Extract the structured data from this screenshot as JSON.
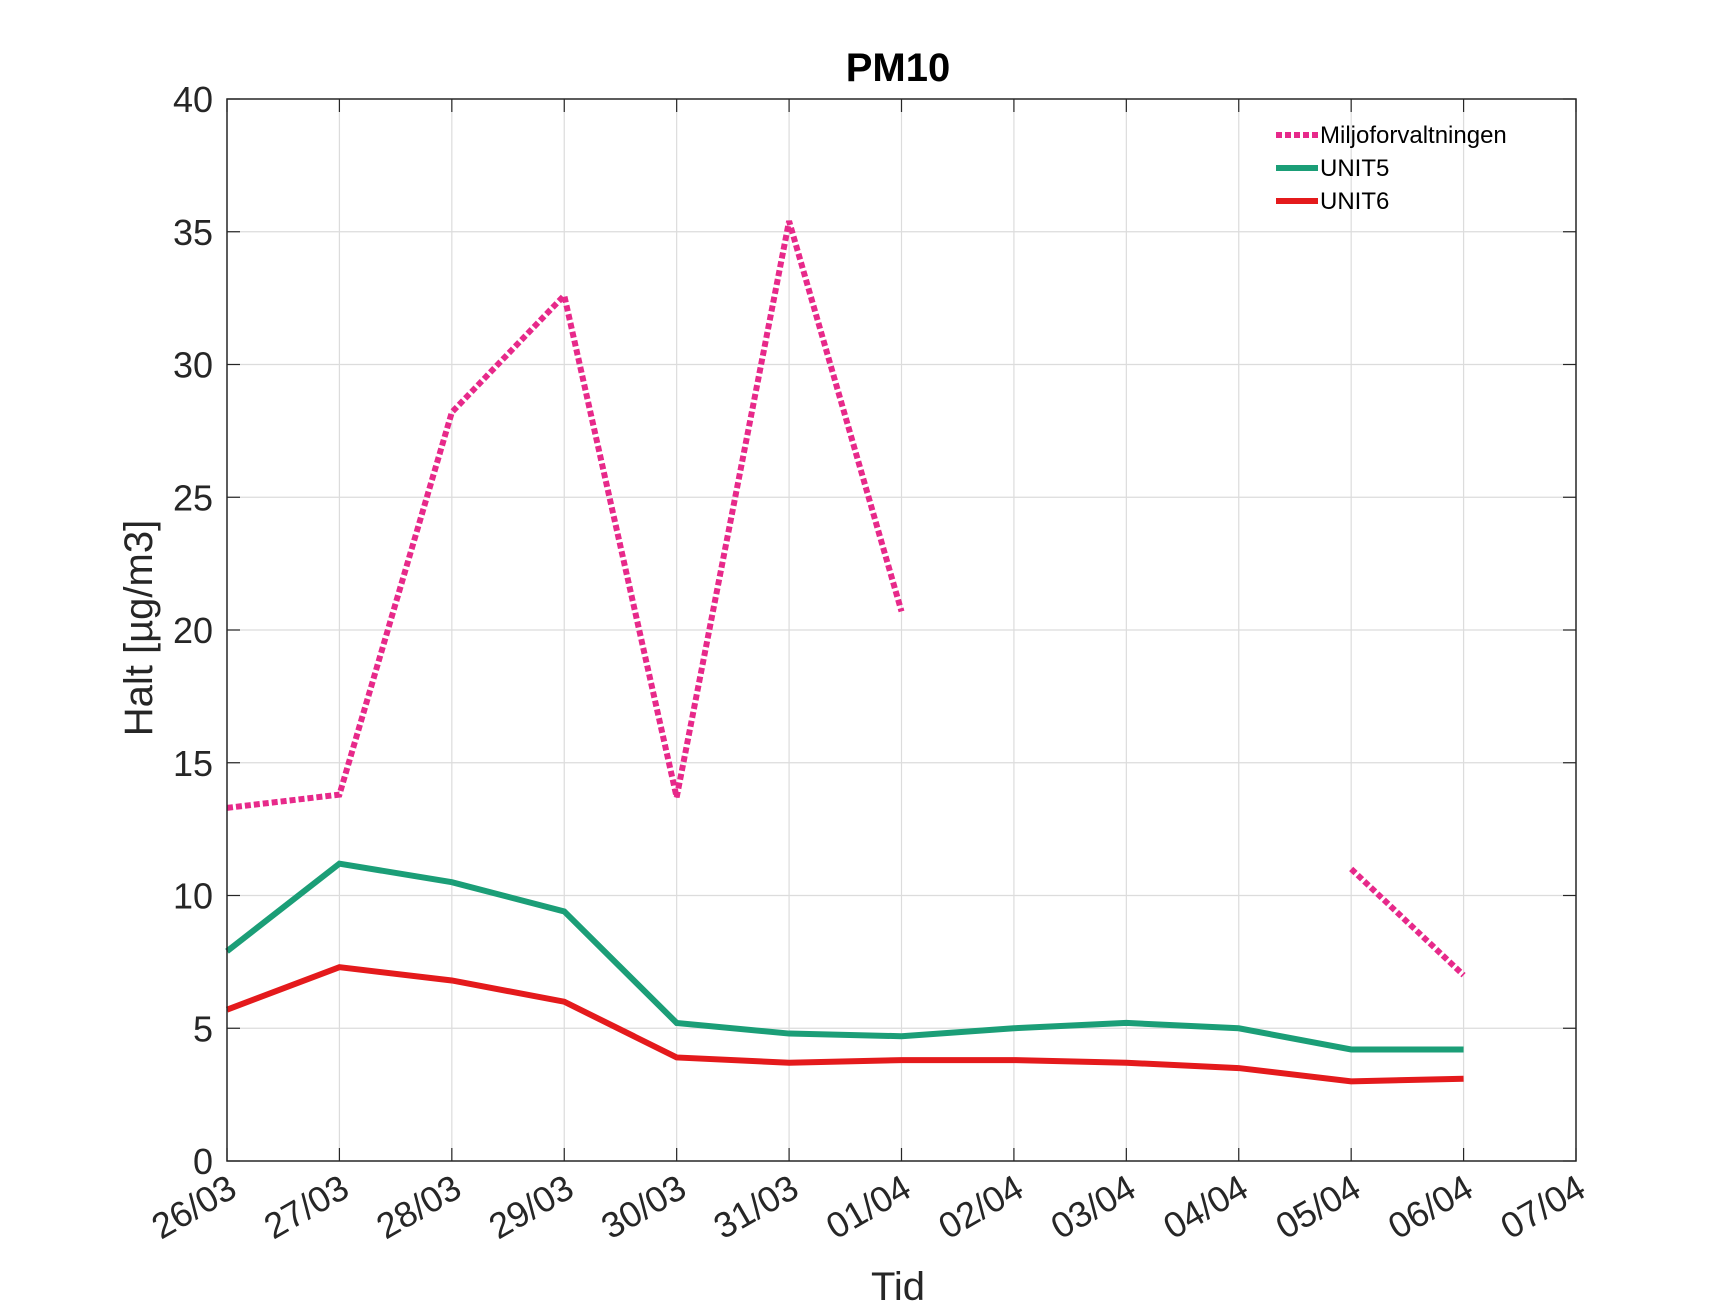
{
  "chart_data": {
    "type": "line",
    "title": "PM10",
    "xlabel": "Tid",
    "ylabel": "Halt [µg/m3]",
    "ylim": [
      0,
      40
    ],
    "yticks": [
      0,
      5,
      10,
      15,
      20,
      25,
      30,
      35,
      40
    ],
    "categories": [
      "26/03",
      "27/03",
      "28/03",
      "29/03",
      "30/03",
      "31/03",
      "01/04",
      "02/04",
      "03/04",
      "04/04",
      "05/04",
      "06/04",
      "07/04"
    ],
    "grid": true,
    "legend_position": "top-right",
    "series": [
      {
        "name": "Miljoforvaltningen",
        "color": "#e7298a",
        "style": "dotted",
        "values": [
          13.3,
          13.8,
          28.2,
          32.6,
          13.7,
          35.4,
          20.7,
          null,
          null,
          null,
          11.0,
          7.0,
          null
        ]
      },
      {
        "name": "UNIT5",
        "color": "#1b9e77",
        "style": "solid",
        "values": [
          7.9,
          11.2,
          10.5,
          9.4,
          5.2,
          4.8,
          4.7,
          5.0,
          5.2,
          5.0,
          4.2,
          4.2,
          null
        ]
      },
      {
        "name": "UNIT6",
        "color": "#e41a1c",
        "style": "solid",
        "values": [
          5.7,
          7.3,
          6.8,
          6.0,
          3.9,
          3.7,
          3.8,
          3.8,
          3.7,
          3.5,
          3.0,
          3.1,
          null
        ]
      }
    ]
  }
}
